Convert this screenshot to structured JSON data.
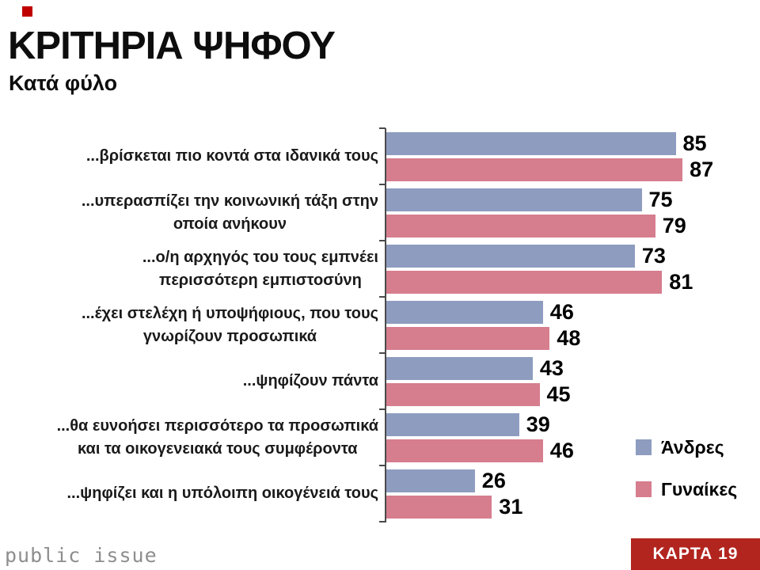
{
  "header": {
    "title": "ΚΡΙΤΗΡΙΑ ΨΗΦΟΥ",
    "subtitle": "Κατά φύλο"
  },
  "chart_data": {
    "type": "bar",
    "orientation": "horizontal",
    "title": "ΚΡΙΤΗΡΙΑ ΨΗΦΟΥ",
    "subtitle": "Κατά φύλο",
    "categories": [
      "...βρίσκεται πιο κοντά στα ιδανικά τους",
      "...υπερασπίζει την κοινωνική τάξη στην\nοποία ανήκουν",
      "...ο/η αρχηγός του τους εμπνέει\nπερισσότερη εμπιστοσύνη",
      "...έχει στελέχη ή υποψήφιους, που τους\nγνωρίζουν προσωπικά",
      "...ψηφίζουν πάντα",
      "...θα ευνοήσει περισσότερο τα προσωπικά\nκαι τα οικογενειακά τους συμφέροντα",
      "...ψηφίζει και η υπόλοιπη οικογένειά τους"
    ],
    "series": [
      {
        "name": "Άνδρες",
        "color": "#8E9CC0",
        "values": [
          85,
          75,
          73,
          46,
          43,
          39,
          26
        ]
      },
      {
        "name": "Γυναίκες",
        "color": "#D67D8E",
        "values": [
          87,
          79,
          81,
          48,
          45,
          46,
          31
        ]
      }
    ],
    "value_labels": true,
    "xlim": [
      0,
      100
    ],
    "grid": false,
    "legend_position": "right-bottom"
  },
  "legend": {
    "items": [
      {
        "label": "Άνδρες",
        "color": "#8E9CC0"
      },
      {
        "label": "Γυναίκες",
        "color": "#D67D8E"
      }
    ]
  },
  "footer": {
    "logo_text": "public issue",
    "card_badge": "ΚΑΡΤΑ 19"
  },
  "colors": {
    "men_bar": "#8E9CC0",
    "women_bar": "#D67D8E",
    "axis": "#4a4a4a",
    "badge_background": "#B2251F",
    "badge_text": "#ffffff",
    "logo_square": "#C00000",
    "logo_text": "#8e8e8e",
    "text": "#0d0d0d"
  }
}
